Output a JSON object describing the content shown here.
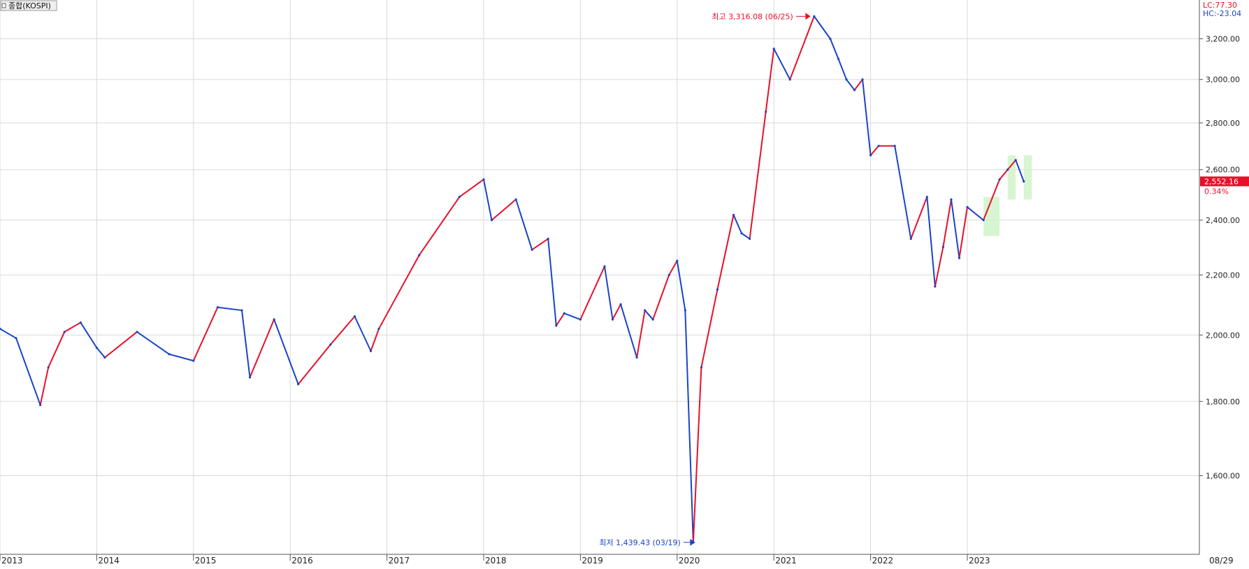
{
  "chart_data": {
    "type": "line",
    "series": [
      {
        "name": "종합(KOSPI)",
        "x": [
          "2013-01",
          "2013-03",
          "2013-06",
          "2013-07",
          "2013-09",
          "2013-11",
          "2014-01",
          "2014-02",
          "2014-06",
          "2014-10",
          "2015-01",
          "2015-04",
          "2015-07",
          "2015-08",
          "2015-11",
          "2016-02",
          "2016-06",
          "2016-09",
          "2016-11",
          "2016-12",
          "2017-05",
          "2017-10",
          "2018-01",
          "2018-02",
          "2018-05",
          "2018-07",
          "2018-09",
          "2018-10",
          "2018-11",
          "2019-01",
          "2019-04",
          "2019-05",
          "2019-06",
          "2019-08",
          "2019-09",
          "2019-10",
          "2019-12",
          "2020-01",
          "2020-02",
          "2020-03",
          "2020-04",
          "2020-06",
          "2020-08",
          "2020-09",
          "2020-10",
          "2020-12",
          "2021-01",
          "2021-03",
          "2021-06",
          "2021-08",
          "2021-09",
          "2021-10",
          "2021-11",
          "2021-12",
          "2022-01",
          "2022-02",
          "2022-04",
          "2022-06",
          "2022-08",
          "2022-09",
          "2022-10",
          "2022-11",
          "2022-12",
          "2023-01",
          "2023-03",
          "2023-05",
          "2023-06",
          "2023-07",
          "2023-08"
        ],
        "values": [
          2020,
          1990,
          1790,
          1900,
          2010,
          2040,
          1960,
          1930,
          2010,
          1940,
          1920,
          2090,
          2080,
          1870,
          2050,
          1850,
          1970,
          2060,
          1950,
          2020,
          2270,
          2490,
          2560,
          2400,
          2480,
          2290,
          2330,
          2030,
          2070,
          2050,
          2230,
          2050,
          2100,
          1930,
          2080,
          2050,
          2200,
          2250,
          2080,
          1439.43,
          1900,
          2150,
          2420,
          2350,
          2330,
          2850,
          3150,
          3000,
          3316.08,
          3200,
          3100,
          3000,
          2950,
          3000,
          2660,
          2700,
          2700,
          2330,
          2490,
          2160,
          2300,
          2480,
          2260,
          2450,
          2400,
          2560,
          2600,
          2640,
          2552.16
        ],
        "color_up": "#e8102a",
        "color_down": "#1a44c8"
      }
    ],
    "y_ticks": [
      "1,600.00",
      "1,800.00",
      "2,000.00",
      "2,200.00",
      "2,400.00",
      "2,600.00",
      "2,800.00",
      "3,000.00",
      "3,200.00"
    ],
    "y_tick_values": [
      1600,
      1800,
      2000,
      2200,
      2400,
      2600,
      2800,
      3000,
      3200
    ],
    "x_ticks": [
      "2013",
      "2014",
      "2015",
      "2016",
      "2017",
      "2018",
      "2019",
      "2020",
      "2021",
      "2022",
      "2023",
      "08/29"
    ],
    "x_tick_dates": [
      "2013-01",
      "2014-01",
      "2015-01",
      "2016-01",
      "2017-01",
      "2018-01",
      "2019-01",
      "2020-01",
      "2021-01",
      "2022-01",
      "2023-01",
      null
    ],
    "x_range": [
      "2013-01",
      "2023-09"
    ],
    "ylim": [
      1439.43,
      3316.08
    ],
    "y_scale": "log",
    "grid": true,
    "legend_placement": "top-left",
    "title": "",
    "xlabel": "",
    "ylabel": "",
    "annotations": {
      "high": {
        "label": "최고 3,316.08 (06/25)",
        "value": 3316.08,
        "date": "2021-06",
        "color": "#e8102a"
      },
      "low": {
        "label": "최저 1,439.43 (03/19)",
        "value": 1439.43,
        "date": "2020-03",
        "color": "#1a44c8"
      }
    },
    "last_value": {
      "label": "2,552.16",
      "change": "0.34%",
      "value": 2552.16
    },
    "corner": {
      "lc": "LC:77.30",
      "hc": "HC:-23.04"
    },
    "highlight_zones": [
      {
        "from": "2023-03",
        "to": "2023-05"
      },
      {
        "from": "2023-06",
        "to": "2023-07"
      },
      {
        "from": "2023-08",
        "to": "2023-09"
      }
    ]
  }
}
